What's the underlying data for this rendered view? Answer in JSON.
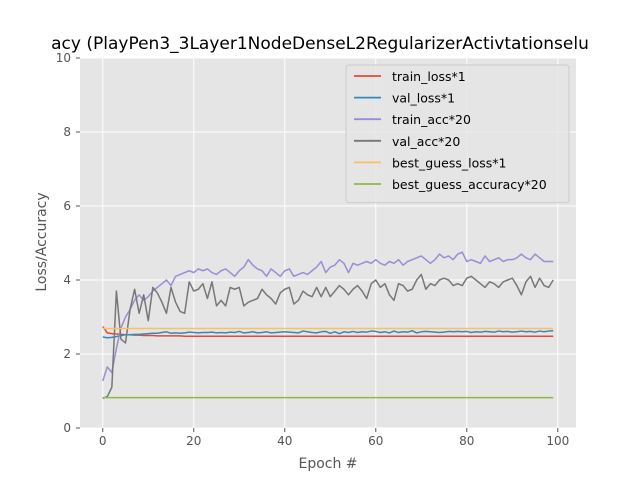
{
  "chart_data": {
    "type": "line",
    "title": "acy (PlayPen3_3Layer1NodeDenseL2RegularizerActivtationselu",
    "xlabel": "Epoch #",
    "ylabel": "Loss/Accuracy",
    "xlim": [
      -5,
      104
    ],
    "ylim": [
      0,
      10
    ],
    "xticks": [
      0,
      20,
      40,
      60,
      80,
      100
    ],
    "yticks": [
      0,
      2,
      4,
      6,
      8,
      10
    ],
    "grid": true,
    "legend_position": "upper-right",
    "style": {
      "background": "#e5e5e5",
      "grid_color": "#ffffff"
    },
    "series": [
      {
        "name": "train_loss*1",
        "color": "#e24a33",
        "values": [
          2.74,
          2.57,
          2.55,
          2.54,
          2.53,
          2.52,
          2.52,
          2.51,
          2.51,
          2.5,
          2.5,
          2.5,
          2.49,
          2.49,
          2.49,
          2.49,
          2.49,
          2.49,
          2.48,
          2.48,
          2.48,
          2.48,
          2.48,
          2.48,
          2.48,
          2.48,
          2.48,
          2.48,
          2.48,
          2.48,
          2.48,
          2.48,
          2.48,
          2.48,
          2.48,
          2.48,
          2.48,
          2.48,
          2.48,
          2.48,
          2.48,
          2.48,
          2.48,
          2.48,
          2.48,
          2.48,
          2.48,
          2.48,
          2.48,
          2.48,
          2.48,
          2.48,
          2.48,
          2.48,
          2.48,
          2.48,
          2.48,
          2.48,
          2.48,
          2.48,
          2.48,
          2.48,
          2.48,
          2.48,
          2.48,
          2.48,
          2.48,
          2.48,
          2.48,
          2.48,
          2.48,
          2.48,
          2.48,
          2.48,
          2.48,
          2.48,
          2.48,
          2.48,
          2.48,
          2.48,
          2.48,
          2.48,
          2.48,
          2.48,
          2.48,
          2.48,
          2.48,
          2.48,
          2.48,
          2.48,
          2.48,
          2.48,
          2.48,
          2.48,
          2.48,
          2.48,
          2.48,
          2.48,
          2.48,
          2.48
        ]
      },
      {
        "name": "val_loss*1",
        "color": "#348abd",
        "values": [
          2.46,
          2.44,
          2.45,
          2.47,
          2.5,
          2.52,
          2.52,
          2.53,
          2.53,
          2.54,
          2.55,
          2.56,
          2.56,
          2.58,
          2.6,
          2.56,
          2.57,
          2.56,
          2.57,
          2.59,
          2.58,
          2.57,
          2.58,
          2.58,
          2.59,
          2.57,
          2.58,
          2.57,
          2.59,
          2.58,
          2.61,
          2.57,
          2.58,
          2.6,
          2.57,
          2.58,
          2.6,
          2.57,
          2.58,
          2.59,
          2.6,
          2.59,
          2.58,
          2.57,
          2.62,
          2.6,
          2.58,
          2.57,
          2.6,
          2.61,
          2.56,
          2.6,
          2.55,
          2.6,
          2.58,
          2.61,
          2.58,
          2.6,
          2.59,
          2.62,
          2.61,
          2.58,
          2.6,
          2.57,
          2.62,
          2.58,
          2.6,
          2.59,
          2.63,
          2.57,
          2.6,
          2.61,
          2.6,
          2.59,
          2.58,
          2.59,
          2.61,
          2.6,
          2.61,
          2.6,
          2.61,
          2.58,
          2.6,
          2.59,
          2.61,
          2.6,
          2.59,
          2.62,
          2.6,
          2.61,
          2.59,
          2.6,
          2.62,
          2.6,
          2.61,
          2.59,
          2.62,
          2.6,
          2.62,
          2.63
        ]
      },
      {
        "name": "train_acc*20",
        "color": "#988ed5",
        "values": [
          1.27,
          1.65,
          1.5,
          2.15,
          2.7,
          3.0,
          3.2,
          3.45,
          3.6,
          3.45,
          3.55,
          3.7,
          3.8,
          3.9,
          4.0,
          3.85,
          4.1,
          4.15,
          4.2,
          4.25,
          4.2,
          4.3,
          4.25,
          4.3,
          4.2,
          4.15,
          4.25,
          4.3,
          4.2,
          4.1,
          4.25,
          4.35,
          4.55,
          4.4,
          4.3,
          4.25,
          4.1,
          4.3,
          4.2,
          4.1,
          4.25,
          4.3,
          4.1,
          4.15,
          4.2,
          4.15,
          4.25,
          4.35,
          4.5,
          4.2,
          4.35,
          4.4,
          4.55,
          4.45,
          4.2,
          4.45,
          4.4,
          4.45,
          4.5,
          4.45,
          4.55,
          4.45,
          4.4,
          4.5,
          4.45,
          4.55,
          4.4,
          4.5,
          4.55,
          4.6,
          4.65,
          4.55,
          4.45,
          4.55,
          4.7,
          4.6,
          4.65,
          4.55,
          4.7,
          4.75,
          4.5,
          4.55,
          4.5,
          4.45,
          4.65,
          4.5,
          4.55,
          4.6,
          4.5,
          4.55,
          4.55,
          4.6,
          4.7,
          4.6,
          4.55,
          4.7,
          4.6,
          4.5,
          4.5,
          4.5
        ]
      },
      {
        "name": "val_acc*20",
        "color": "#777777",
        "values": [
          0.8,
          0.85,
          1.1,
          3.7,
          2.4,
          2.3,
          3.2,
          3.75,
          3.1,
          3.6,
          2.9,
          3.8,
          3.65,
          3.4,
          3.1,
          3.8,
          3.4,
          3.15,
          3.1,
          3.95,
          3.7,
          3.75,
          3.9,
          3.5,
          3.95,
          3.3,
          3.45,
          3.3,
          3.8,
          3.75,
          3.8,
          3.3,
          3.4,
          3.45,
          3.5,
          3.75,
          3.6,
          3.5,
          3.35,
          3.65,
          3.75,
          3.8,
          3.35,
          3.45,
          3.7,
          3.6,
          3.55,
          3.8,
          3.55,
          3.8,
          3.55,
          3.7,
          3.85,
          3.75,
          3.6,
          3.75,
          3.85,
          3.7,
          3.5,
          3.9,
          4.0,
          3.8,
          3.9,
          3.6,
          3.45,
          3.9,
          3.85,
          3.7,
          3.75,
          4.0,
          4.15,
          3.75,
          3.9,
          3.85,
          4.0,
          4.05,
          4.0,
          3.85,
          3.9,
          3.85,
          4.05,
          4.1,
          4.0,
          3.9,
          3.8,
          3.95,
          3.9,
          3.8,
          3.95,
          4.0,
          4.05,
          3.85,
          3.6,
          3.95,
          4.1,
          3.8,
          4.05,
          3.85,
          3.8,
          4.0
        ]
      },
      {
        "name": "best_guess_loss*1",
        "color": "#fbc15e",
        "values": [
          2.69,
          2.69,
          2.69,
          2.69,
          2.69,
          2.69,
          2.69,
          2.69,
          2.69,
          2.69,
          2.69,
          2.69,
          2.69,
          2.69,
          2.69,
          2.69,
          2.69,
          2.69,
          2.69,
          2.69,
          2.69,
          2.69,
          2.69,
          2.69,
          2.69,
          2.69,
          2.69,
          2.69,
          2.69,
          2.69,
          2.69,
          2.69,
          2.69,
          2.69,
          2.69,
          2.69,
          2.69,
          2.69,
          2.69,
          2.69,
          2.69,
          2.69,
          2.69,
          2.69,
          2.69,
          2.69,
          2.69,
          2.69,
          2.69,
          2.69,
          2.69,
          2.69,
          2.69,
          2.69,
          2.69,
          2.69,
          2.69,
          2.69,
          2.69,
          2.69,
          2.69,
          2.69,
          2.69,
          2.69,
          2.69,
          2.69,
          2.69,
          2.69,
          2.69,
          2.69,
          2.69,
          2.69,
          2.69,
          2.69,
          2.69,
          2.69,
          2.69,
          2.69,
          2.69,
          2.69,
          2.69,
          2.69,
          2.69,
          2.69,
          2.69,
          2.69,
          2.69,
          2.69,
          2.69,
          2.69,
          2.69,
          2.69,
          2.69,
          2.69,
          2.69,
          2.69,
          2.69,
          2.69,
          2.69,
          2.69
        ]
      },
      {
        "name": "best_guess_accuracy*20",
        "color": "#8eba42",
        "values": [
          0.82,
          0.82,
          0.82,
          0.82,
          0.82,
          0.82,
          0.82,
          0.82,
          0.82,
          0.82,
          0.82,
          0.82,
          0.82,
          0.82,
          0.82,
          0.82,
          0.82,
          0.82,
          0.82,
          0.82,
          0.82,
          0.82,
          0.82,
          0.82,
          0.82,
          0.82,
          0.82,
          0.82,
          0.82,
          0.82,
          0.82,
          0.82,
          0.82,
          0.82,
          0.82,
          0.82,
          0.82,
          0.82,
          0.82,
          0.82,
          0.82,
          0.82,
          0.82,
          0.82,
          0.82,
          0.82,
          0.82,
          0.82,
          0.82,
          0.82,
          0.82,
          0.82,
          0.82,
          0.82,
          0.82,
          0.82,
          0.82,
          0.82,
          0.82,
          0.82,
          0.82,
          0.82,
          0.82,
          0.82,
          0.82,
          0.82,
          0.82,
          0.82,
          0.82,
          0.82,
          0.82,
          0.82,
          0.82,
          0.82,
          0.82,
          0.82,
          0.82,
          0.82,
          0.82,
          0.82,
          0.82,
          0.82,
          0.82,
          0.82,
          0.82,
          0.82,
          0.82,
          0.82,
          0.82,
          0.82,
          0.82,
          0.82,
          0.82,
          0.82,
          0.82,
          0.82,
          0.82,
          0.82,
          0.82,
          0.82
        ]
      }
    ]
  }
}
